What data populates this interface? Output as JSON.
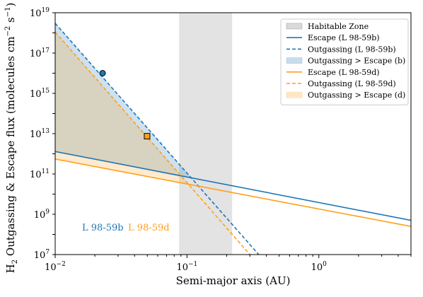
{
  "chart_data": {
    "type": "line",
    "xlabel": "Semi-major axis (AU)",
    "ylabel_main": "H",
    "ylabel_sub": "2",
    "ylabel_rest": " Outgassing & Escape flux (molecules cm",
    "ylabel_exp1": "−2",
    "ylabel_mid": " s",
    "ylabel_exp2": "−1",
    "ylabel_end": ")",
    "x_scale": "log",
    "y_scale": "log",
    "xlim": [
      0.01,
      5
    ],
    "ylim": [
      10000000.0,
      1e+19
    ],
    "grid": false,
    "legend_position": "top-right",
    "x_ticks": [
      {
        "value": 0.01,
        "base": "10",
        "exp": "−2"
      },
      {
        "value": 0.1,
        "base": "10",
        "exp": "−1"
      },
      {
        "value": 1,
        "base": "10",
        "exp": "0"
      }
    ],
    "y_ticks": [
      {
        "value": 10000000.0,
        "base": "10",
        "exp": "7"
      },
      {
        "value": 1000000000.0,
        "base": "10",
        "exp": "9"
      },
      {
        "value": 100000000000.0,
        "base": "10",
        "exp": "11"
      },
      {
        "value": 10000000000000.0,
        "base": "10",
        "exp": "13"
      },
      {
        "value": 1000000000000000.0,
        "base": "10",
        "exp": "15"
      },
      {
        "value": 1e+17,
        "base": "10",
        "exp": "17"
      },
      {
        "value": 1e+19,
        "base": "10",
        "exp": "19"
      }
    ],
    "habitable_zone": {
      "x_range": [
        0.087,
        0.22
      ],
      "color": "#d9d9d9"
    },
    "series": [
      {
        "name": "Escape (L 98-59b)",
        "kind": "escape",
        "color": "#1f77b4",
        "points": [
          [
            0.01,
            1300000000000.0
          ],
          [
            5,
            500000000.0
          ]
        ]
      },
      {
        "name": "Outgassing (L 98-59b)",
        "kind": "outgassing",
        "color": "#1f77b4",
        "points": [
          [
            0.01,
            3e+18
          ],
          [
            0.35,
            10000000.0
          ]
        ]
      },
      {
        "name": "Escape (L 98-59d)",
        "kind": "escape",
        "color": "#ff9f1c",
        "points": [
          [
            0.01,
            550000000000.0
          ],
          [
            5,
            250000000.0
          ]
        ]
      },
      {
        "name": "Outgassing (L 98-59d)",
        "kind": "outgassing",
        "color": "#ff9f1c",
        "points": [
          [
            0.01,
            1.1e+18
          ],
          [
            0.3,
            10000000.0
          ]
        ]
      }
    ],
    "fills": [
      {
        "name": "Outgassing > Escape (b)",
        "color": "#1f77b4"
      },
      {
        "name": "Outgassing > Escape (d)",
        "color": "#ff9f1c"
      }
    ],
    "markers": [
      {
        "planet": "L 98-59b",
        "shape": "circle",
        "x": 0.0229,
        "y": 1e+16,
        "color": "#1f77b4"
      },
      {
        "planet": "L 98-59d",
        "shape": "square",
        "x": 0.0498,
        "y": 7500000000000.0,
        "color": "#ff9f1c"
      }
    ],
    "annotations": [
      {
        "text": "L 98-59b",
        "color": "#1f77b4"
      },
      {
        "text": "L 98-59d",
        "color": "#ff9f1c"
      }
    ],
    "legend_entries": [
      "Habitable Zone",
      "Escape (L 98-59b)",
      "Outgassing (L 98-59b)",
      "Outgassing > Escape (b)",
      "Escape (L 98-59d)",
      "Outgassing (L 98-59d)",
      "Outgassing > Escape (d)"
    ]
  }
}
